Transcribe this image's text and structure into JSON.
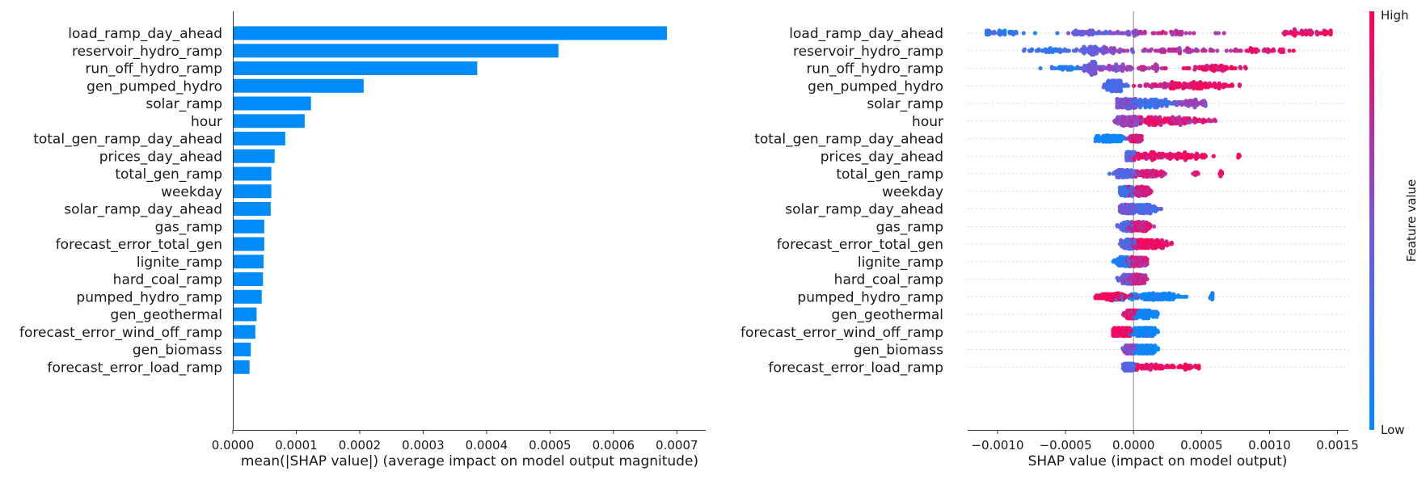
{
  "chart_data": [
    {
      "type": "bar",
      "xlabel": "mean(|SHAP value|) (average impact on model output magnitude)",
      "xlim": [
        0,
        0.00072
      ],
      "xticks": [
        "0.0000",
        "0.0001",
        "0.0002",
        "0.0003",
        "0.0004",
        "0.0005",
        "0.0006",
        "0.0007"
      ],
      "xtick_values": [
        0,
        0.0001,
        0.0002,
        0.0003,
        0.0004,
        0.0005,
        0.0006,
        0.0007
      ],
      "bar_color": "#008bfb",
      "categories": [
        "load_ramp_day_ahead",
        "reservoir_hydro_ramp",
        "run_off_hydro_ramp",
        "gen_pumped_hydro",
        "solar_ramp",
        "hour",
        "total_gen_ramp_day_ahead",
        "prices_day_ahead",
        "total_gen_ramp",
        "weekday",
        "solar_ramp_day_ahead",
        "gas_ramp",
        "forecast_error_total_gen",
        "lignite_ramp",
        "hard_coal_ramp",
        "pumped_hydro_ramp",
        "gen_geothermal",
        "forecast_error_wind_off_ramp",
        "gen_biomass",
        "forecast_error_load_ramp"
      ],
      "values": [
        0.000683,
        0.000512,
        0.000384,
        0.000205,
        0.000122,
        0.000112,
        8.14e-05,
        6.47e-05,
        5.94e-05,
        5.94e-05,
        5.84e-05,
        4.83e-05,
        4.83e-05,
        4.73e-05,
        4.63e-05,
        4.42e-05,
        3.62e-05,
        3.42e-05,
        2.71e-05,
        2.51e-05
      ]
    },
    {
      "type": "scatter",
      "subtype": "shap_beeswarm",
      "xlabel": "SHAP value (impact on model output)",
      "xlim": [
        -0.00122,
        0.00158
      ],
      "xticks": [
        "−0.0010",
        "−0.0005",
        "0.0000",
        "0.0005",
        "0.0010",
        "0.0015"
      ],
      "xtick_values": [
        -0.001,
        -0.0005,
        0,
        0.0005,
        0.001,
        0.0015
      ],
      "colorbar": {
        "label": "Feature value",
        "high": "High",
        "low": "Low",
        "low_color": "#008bfb",
        "high_color": "#ff0052"
      },
      "features": [
        {
          "name": "load_ramp_day_ahead",
          "min": -0.00108,
          "max": 0.00145,
          "corr": 1,
          "spread": 0.55,
          "clusters": [
            [
              -0.00095,
              0.0001,
              0.14,
              0.2
            ],
            [
              -0.00035,
              8e-05,
              0.16,
              0.42
            ],
            [
              -0.00012,
              5e-05,
              0.05,
              0.5
            ],
            [
              1e-05,
              4e-05,
              0.07,
              0.6
            ],
            [
              0.00025,
              0.0002,
              0.12,
              0.75
            ],
            [
              0.00128,
              0.00012,
              0.2,
              0.92
            ]
          ]
        },
        {
          "name": "reservoir_hydro_ramp",
          "min": -0.00085,
          "max": 0.00118,
          "corr": 1,
          "spread": 0.75,
          "clusters": [
            [
              -0.0006,
              0.00013,
              0.15,
              0.25
            ],
            [
              -0.0003,
              5e-05,
              0.2,
              0.4
            ],
            [
              -0.0001,
              0.0001,
              0.12,
              0.55
            ],
            [
              0.00035,
              0.0002,
              0.2,
              0.72
            ],
            [
              0.00095,
              0.00012,
              0.15,
              0.9
            ]
          ]
        },
        {
          "name": "run_off_hydro_ramp",
          "min": -0.0007,
          "max": 0.00088,
          "corr": 1,
          "spread": 0.7,
          "clusters": [
            [
              -0.0005,
              8e-05,
              0.1,
              0.15
            ],
            [
              -0.0003,
              4e-05,
              0.25,
              0.45
            ],
            [
              -0.00012,
              6e-05,
              0.15,
              0.55
            ],
            [
              0.00012,
              0.0001,
              0.1,
              0.7
            ],
            [
              0.0006,
              0.00011,
              0.25,
              0.9
            ]
          ]
        },
        {
          "name": "gen_pumped_hydro",
          "min": -0.00022,
          "max": 0.00078,
          "corr": 1,
          "spread": 0.5,
          "clusters": [
            [
              -0.00014,
              4e-05,
              0.4,
              0.3
            ],
            [
              0.00025,
              0.0001,
              0.2,
              0.8
            ],
            [
              0.00055,
              0.00012,
              0.3,
              0.95
            ]
          ]
        },
        {
          "name": "solar_ramp",
          "min": -0.00012,
          "max": 0.00055,
          "corr": 1,
          "spread": 0.45,
          "clusters": [
            [
              -5e-05,
              5e-05,
              0.45,
              0.55
            ],
            [
              0.00015,
              8e-05,
              0.35,
              0.25
            ],
            [
              0.00042,
              6e-05,
              0.2,
              0.6
            ]
          ]
        },
        {
          "name": "hour",
          "min": -0.0002,
          "max": 0.00063,
          "corr": 1,
          "spread": 0.42,
          "clusters": [
            [
              -3e-05,
              6e-05,
              0.5,
              0.6
            ],
            [
              0.0002,
              9e-05,
              0.3,
              0.9
            ],
            [
              0.0004,
              0.0001,
              0.2,
              0.8
            ]
          ]
        },
        {
          "name": "total_gen_ramp_day_ahead",
          "min": -0.00028,
          "max": 6e-05,
          "corr": 1,
          "spread": 0.2,
          "clusters": [
            [
              -0.00017,
              5e-05,
              0.55,
              0.05
            ],
            [
              2e-05,
              2e-05,
              0.45,
              0.85
            ]
          ]
        },
        {
          "name": "prices_day_ahead",
          "min": -5e-05,
          "max": 0.00078,
          "corr": 1,
          "spread": 0.32,
          "clusters": [
            [
              -3e-05,
              2e-05,
              0.5,
              0.35
            ],
            [
              0.0001,
              6e-05,
              0.2,
              0.9
            ],
            [
              0.00035,
              0.00011,
              0.28,
              0.95
            ],
            [
              0.00078,
              1e-05,
              0.02,
              0.95
            ]
          ]
        },
        {
          "name": "total_gen_ramp",
          "min": -0.00018,
          "max": 0.00065,
          "corr": 1,
          "spread": 0.28,
          "clusters": [
            [
              -6e-05,
              4e-05,
              0.65,
              0.35
            ],
            [
              0.00012,
              5e-05,
              0.3,
              0.85
            ],
            [
              0.00045,
              1e-05,
              0.025,
              0.95
            ],
            [
              0.00065,
              1e-05,
              0.025,
              0.95
            ]
          ]
        },
        {
          "name": "weekday",
          "min": -0.0001,
          "max": 0.00013,
          "corr": 1,
          "spread": 0.4,
          "clusters": [
            [
              -4e-05,
              3e-05,
              0.55,
              0.25
            ],
            [
              6e-05,
              3e-05,
              0.45,
              0.85
            ]
          ]
        },
        {
          "name": "solar_ramp_day_ahead",
          "min": -0.0001,
          "max": 0.00022,
          "corr": 1,
          "spread": 0.36,
          "clusters": [
            [
              -4e-05,
              3e-05,
              0.6,
              0.5
            ],
            [
              8e-05,
              5e-05,
              0.4,
              0.3
            ]
          ]
        },
        {
          "name": "gas_ramp",
          "min": -0.00012,
          "max": 0.00015,
          "corr": 1,
          "spread": 0.4,
          "clusters": [
            [
              -4e-05,
              3e-05,
              0.5,
              0.3
            ],
            [
              5e-05,
              4e-05,
              0.5,
              0.8
            ]
          ]
        },
        {
          "name": "forecast_error_total_gen",
          "min": -0.0001,
          "max": 0.00028,
          "corr": 1,
          "spread": 0.4,
          "clusters": [
            [
              -3e-05,
              3e-05,
              0.55,
              0.35
            ],
            [
              0.00012,
              7e-05,
              0.45,
              0.95
            ]
          ]
        },
        {
          "name": "lignite_ramp",
          "min": -0.00015,
          "max": 0.0001,
          "corr": 1,
          "spread": 0.4,
          "clusters": [
            [
              -5e-05,
              4e-05,
              0.5,
              0.15
            ],
            [
              3e-05,
              3e-05,
              0.5,
              0.8
            ]
          ]
        },
        {
          "name": "hard_coal_ramp",
          "min": -0.00012,
          "max": 0.0001,
          "corr": 1,
          "spread": 0.4,
          "clusters": [
            [
              -4e-05,
              3e-05,
              0.5,
              0.4
            ],
            [
              3e-05,
              3e-05,
              0.5,
              0.8
            ]
          ]
        },
        {
          "name": "pumped_hydro_ramp",
          "min": -0.00028,
          "max": 0.00058,
          "corr": 1,
          "spread": 0.28,
          "clusters": [
            [
              -0.00013,
              7e-05,
              0.45,
              0.95
            ],
            [
              0.00015,
              0.0001,
              0.5,
              0.05
            ],
            [
              0.00058,
              1e-05,
              0.05,
              0.05
            ]
          ]
        },
        {
          "name": "gen_geothermal",
          "min": -8e-05,
          "max": 0.00018,
          "corr": 1,
          "spread": 0.3,
          "clusters": [
            [
              -2e-05,
              2e-05,
              0.6,
              0.9
            ],
            [
              9e-05,
              4e-05,
              0.4,
              0.05
            ]
          ]
        },
        {
          "name": "forecast_error_wind_off_ramp",
          "min": -0.00015,
          "max": 0.00018,
          "corr": 1,
          "spread": 0.32,
          "clusters": [
            [
              -8e-05,
              4e-05,
              0.45,
              0.95
            ],
            [
              8e-05,
              4e-05,
              0.55,
              0.05
            ]
          ]
        },
        {
          "name": "gen_biomass",
          "min": -8e-05,
          "max": 0.00018,
          "corr": 1,
          "spread": 0.3,
          "clusters": [
            [
              -2e-05,
              2e-05,
              0.6,
              0.55
            ],
            [
              0.0001,
              4e-05,
              0.4,
              0.05
            ]
          ]
        },
        {
          "name": "forecast_error_load_ramp",
          "min": -0.0001,
          "max": 0.00048,
          "corr": 1,
          "spread": 0.25,
          "clusters": [
            [
              -3e-05,
              2e-05,
              0.7,
              0.35
            ],
            [
              0.00015,
              8e-05,
              0.2,
              0.95
            ],
            [
              0.00038,
              6e-05,
              0.1,
              0.95
            ]
          ]
        }
      ]
    }
  ]
}
